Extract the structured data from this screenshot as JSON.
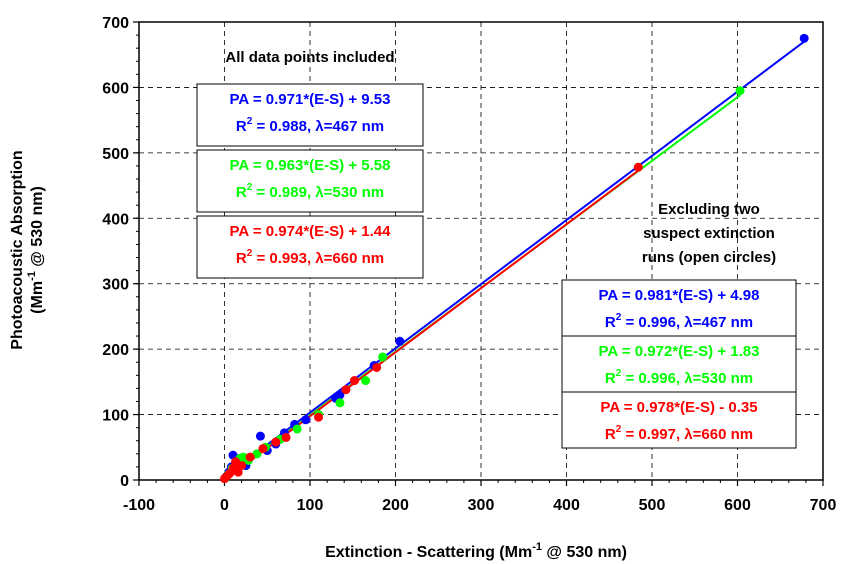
{
  "chart_data": {
    "type": "scatter",
    "xlabel": "Extinction - Scattering (Mm",
    "xlabel_sup": "-1",
    "xlabel_tail": " @ 530 nm)",
    "ylabel": "Photoacoustic Absorption",
    "ylabel_line2": "(Mm",
    "ylabel_line2_sup": "-1",
    "ylabel_line2_tail": " @ 530 nm)",
    "xlim": [
      -100,
      700
    ],
    "ylim": [
      0,
      700
    ],
    "xticks": [
      -100,
      0,
      100,
      200,
      300,
      400,
      500,
      600,
      700
    ],
    "yticks": [
      0,
      100,
      200,
      300,
      400,
      500,
      600,
      700
    ],
    "grid": true,
    "series": [
      {
        "color": "#0000ff",
        "points": [
          [
            2,
            5
          ],
          [
            5,
            12
          ],
          [
            8,
            20
          ],
          [
            10,
            38
          ],
          [
            12,
            15
          ],
          [
            15,
            25
          ],
          [
            20,
            30
          ],
          [
            25,
            22
          ],
          [
            42,
            67
          ],
          [
            50,
            45
          ],
          [
            60,
            55
          ],
          [
            70,
            72
          ],
          [
            82,
            85
          ],
          [
            95,
            92
          ],
          [
            130,
            125
          ],
          [
            135,
            130
          ],
          [
            175,
            175
          ],
          [
            205,
            212
          ],
          [
            678,
            675
          ]
        ],
        "fit": {
          "x": [
            0,
            678
          ],
          "slope": 0.981,
          "intercept": 4.98
        }
      },
      {
        "color": "#00ff00",
        "points": [
          [
            1,
            3
          ],
          [
            4,
            8
          ],
          [
            9,
            18
          ],
          [
            14,
            25
          ],
          [
            18,
            33
          ],
          [
            22,
            35
          ],
          [
            28,
            30
          ],
          [
            38,
            40
          ],
          [
            48,
            50
          ],
          [
            65,
            62
          ],
          [
            85,
            78
          ],
          [
            110,
            100
          ],
          [
            135,
            118
          ],
          [
            165,
            152
          ],
          [
            185,
            188
          ],
          [
            484,
            478
          ],
          [
            603,
            595
          ]
        ],
        "fit": {
          "x": [
            0,
            603
          ],
          "slope": 0.972,
          "intercept": 1.83
        }
      },
      {
        "color": "#ff0000",
        "points": [
          [
            0,
            2
          ],
          [
            3,
            6
          ],
          [
            6,
            10
          ],
          [
            10,
            18
          ],
          [
            13,
            28
          ],
          [
            16,
            12
          ],
          [
            20,
            22
          ],
          [
            30,
            35
          ],
          [
            45,
            48
          ],
          [
            60,
            58
          ],
          [
            72,
            65
          ],
          [
            110,
            96
          ],
          [
            142,
            138
          ],
          [
            152,
            152
          ],
          [
            178,
            172
          ],
          [
            484,
            478
          ]
        ],
        "fit": {
          "x": [
            0,
            484
          ],
          "slope": 0.978,
          "intercept": -0.35
        }
      }
    ],
    "annotations": {
      "all_title": "All data points included",
      "excl_title": [
        "Excluding two",
        "suspect extinction",
        "runs (open circles)"
      ],
      "left_boxes": [
        {
          "eq": "PA = 0.971*(E-S) + 9.53",
          "r2": "= 0.988, ",
          "lam": "=467 nm",
          "color": "#0000ff"
        },
        {
          "eq": "PA = 0.963*(E-S) + 5.58",
          "r2": "= 0.989, ",
          "lam": "=530 nm",
          "color": "#00ff00"
        },
        {
          "eq": "PA = 0.974*(E-S) + 1.44",
          "r2": "= 0.993, ",
          "lam": "=660 nm",
          "color": "#ff0000"
        }
      ],
      "right_boxes": [
        {
          "eq": "PA = 0.981*(E-S) + 4.98",
          "r2": "= 0.996, ",
          "lam": "=467 nm",
          "color": "#0000ff"
        },
        {
          "eq": "PA = 0.972*(E-S) + 1.83",
          "r2": "= 0.996, ",
          "lam": "=530 nm",
          "color": "#00ff00"
        },
        {
          "eq": "PA = 0.978*(E-S) - 0.35",
          "r2": "= 0.997, ",
          "lam": "=660 nm",
          "color": "#ff0000"
        }
      ],
      "r_symbol": "R",
      "r_sup": "2",
      "lambda_symbol": "λ"
    }
  }
}
